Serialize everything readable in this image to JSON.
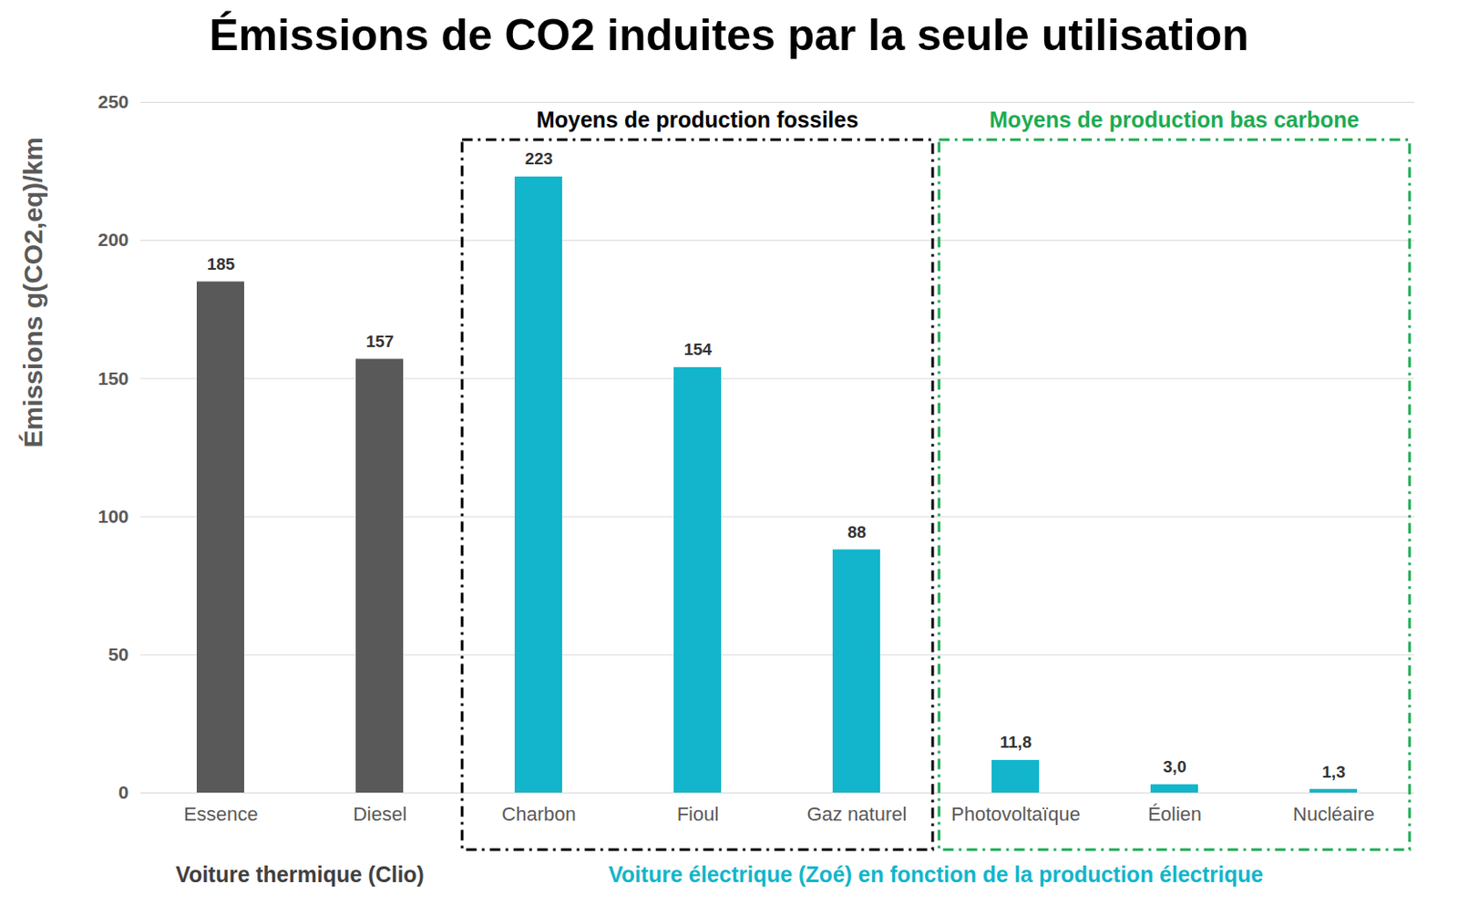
{
  "chart_data": {
    "type": "bar",
    "title": "Émissions de CO2 induites par la seule utilisation",
    "ylabel": "Émissions g(CO2,eq)/km",
    "categories": [
      "Essence",
      "Diesel",
      "Charbon",
      "Fioul",
      "Gaz naturel",
      "Photovoltaïque",
      "Éolien",
      "Nucléaire"
    ],
    "values": [
      185,
      157,
      223,
      154,
      88,
      11.8,
      3.0,
      1.3
    ],
    "value_labels": [
      "185",
      "157",
      "223",
      "154",
      "88",
      "11,8",
      "3,0",
      "1,3"
    ],
    "colors": [
      "#595959",
      "#595959",
      "#12B5CB",
      "#12B5CB",
      "#12B5CB",
      "#12B5CB",
      "#12B5CB",
      "#12B5CB"
    ],
    "ylim": [
      0,
      250
    ],
    "yticks": [
      0,
      50,
      100,
      150,
      200,
      250
    ],
    "grid": true,
    "data_labels": true,
    "annotations": [
      {
        "label": "Moyens de production fossiles",
        "categories": [
          "Charbon",
          "Fioul",
          "Gaz naturel"
        ],
        "color": "#000000"
      },
      {
        "label": "Moyens de production bas carbone",
        "categories": [
          "Photovoltaïque",
          "Éolien",
          "Nucléaire"
        ],
        "color": "#1DAB53"
      }
    ],
    "category_groups": [
      {
        "label": "Voiture thermique (Clio)",
        "categories": [
          "Essence",
          "Diesel"
        ],
        "color": "#404040"
      },
      {
        "label": "Voiture électrique (Zoé) en fonction de la production électrique",
        "categories": [
          "Charbon",
          "Fioul",
          "Gaz naturel",
          "Photovoltaïque",
          "Éolien",
          "Nucléaire"
        ],
        "color": "#12B5CB"
      }
    ]
  }
}
